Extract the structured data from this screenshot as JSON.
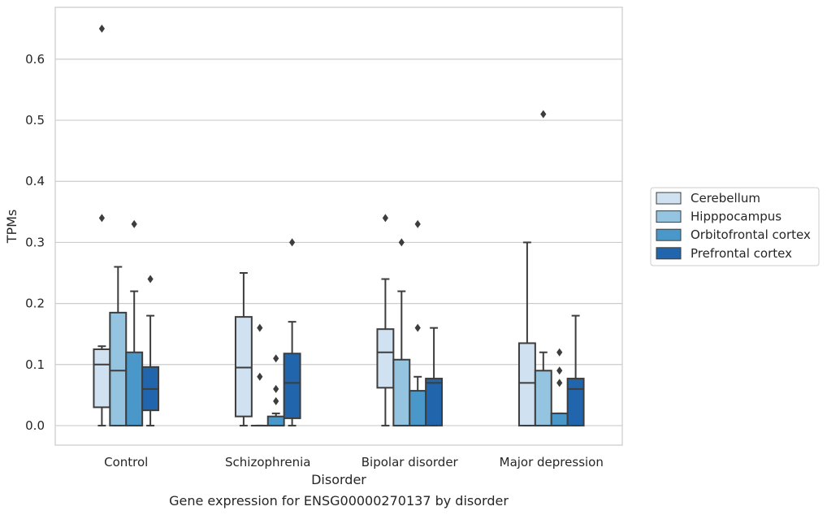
{
  "chart_data": {
    "type": "box",
    "title": "Gene expression for ENSG00000270137 by disorder",
    "xlabel": "Disorder",
    "ylabel": "TPMs",
    "ylim": [
      -0.032,
      0.685
    ],
    "yticks": [
      0.0,
      0.1,
      0.2,
      0.3,
      0.4,
      0.5,
      0.6
    ],
    "ytick_labels": [
      "0.0",
      "0.1",
      "0.2",
      "0.3",
      "0.4",
      "0.5",
      "0.6"
    ],
    "grid": true,
    "legend_position": "right",
    "categories": [
      "Control",
      "Schizophrenia",
      "Bipolar disorder",
      "Major depression"
    ],
    "series": [
      {
        "name": "Cerebellum",
        "color": "#d0e1f2",
        "boxes": [
          {
            "q1": 0.03,
            "median": 0.1,
            "q3": 0.125,
            "whisker_low": 0.0,
            "whisker_high": 0.13,
            "outliers": [
              0.34,
              0.65
            ]
          },
          {
            "q1": 0.015,
            "median": 0.095,
            "q3": 0.178,
            "whisker_low": 0.0,
            "whisker_high": 0.25,
            "outliers": []
          },
          {
            "q1": 0.062,
            "median": 0.12,
            "q3": 0.158,
            "whisker_low": 0.0,
            "whisker_high": 0.24,
            "outliers": [
              0.34
            ]
          },
          {
            "q1": 0.0,
            "median": 0.07,
            "q3": 0.135,
            "whisker_low": 0.0,
            "whisker_high": 0.3,
            "outliers": []
          }
        ]
      },
      {
        "name": "Hipppocampus",
        "color": "#94c4df",
        "boxes": [
          {
            "q1": 0.0,
            "median": 0.09,
            "q3": 0.185,
            "whisker_low": 0.0,
            "whisker_high": 0.26,
            "outliers": []
          },
          {
            "q1": 0.0,
            "median": 0.0,
            "q3": 0.0,
            "whisker_low": 0.0,
            "whisker_high": 0.0,
            "outliers": [
              0.08,
              0.16
            ]
          },
          {
            "q1": 0.0,
            "median": 0.0,
            "q3": 0.108,
            "whisker_low": 0.0,
            "whisker_high": 0.22,
            "outliers": [
              0.3
            ]
          },
          {
            "q1": 0.0,
            "median": 0.0,
            "q3": 0.09,
            "whisker_low": 0.0,
            "whisker_high": 0.12,
            "outliers": [
              0.51
            ]
          }
        ]
      },
      {
        "name": "Orbitofrontal cortex",
        "color": "#4a98c9",
        "boxes": [
          {
            "q1": 0.0,
            "median": 0.0,
            "q3": 0.12,
            "whisker_low": 0.0,
            "whisker_high": 0.22,
            "outliers": [
              0.33
            ]
          },
          {
            "q1": 0.0,
            "median": 0.0,
            "q3": 0.015,
            "whisker_low": 0.0,
            "whisker_high": 0.02,
            "outliers": [
              0.04,
              0.06,
              0.11
            ]
          },
          {
            "q1": 0.0,
            "median": 0.0,
            "q3": 0.057,
            "whisker_low": 0.0,
            "whisker_high": 0.08,
            "outliers": [
              0.16,
              0.33
            ]
          },
          {
            "q1": 0.0,
            "median": 0.0,
            "q3": 0.02,
            "whisker_low": 0.0,
            "whisker_high": 0.02,
            "outliers": [
              0.07,
              0.09,
              0.12
            ]
          }
        ]
      },
      {
        "name": "Prefrontal cortex",
        "color": "#2166ac",
        "boxes": [
          {
            "q1": 0.025,
            "median": 0.06,
            "q3": 0.096,
            "whisker_low": 0.0,
            "whisker_high": 0.18,
            "outliers": [
              0.24
            ]
          },
          {
            "q1": 0.012,
            "median": 0.07,
            "q3": 0.118,
            "whisker_low": 0.0,
            "whisker_high": 0.17,
            "outliers": [
              0.3
            ]
          },
          {
            "q1": 0.0,
            "median": 0.07,
            "q3": 0.077,
            "whisker_low": 0.0,
            "whisker_high": 0.16,
            "outliers": []
          },
          {
            "q1": 0.0,
            "median": 0.06,
            "q3": 0.077,
            "whisker_low": 0.0,
            "whisker_high": 0.18,
            "outliers": []
          }
        ]
      }
    ]
  }
}
